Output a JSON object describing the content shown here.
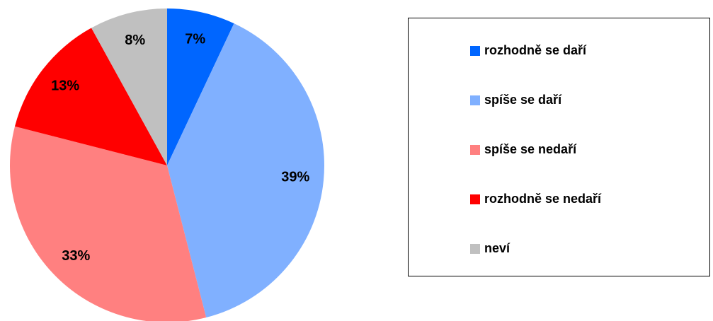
{
  "chart_data": {
    "type": "pie",
    "categories": [
      "rozhodně se daří",
      "spíše se daří",
      "spíše se nedaří",
      "rozhodně se nedaří",
      "neví"
    ],
    "values": [
      7,
      39,
      33,
      13,
      8
    ],
    "value_labels": [
      "7%",
      "39%",
      "33%",
      "13%",
      "8%"
    ],
    "colors": [
      "#0066ff",
      "#80b0ff",
      "#ff8080",
      "#ff0000",
      "#c0c0c0"
    ],
    "legend": "right"
  }
}
